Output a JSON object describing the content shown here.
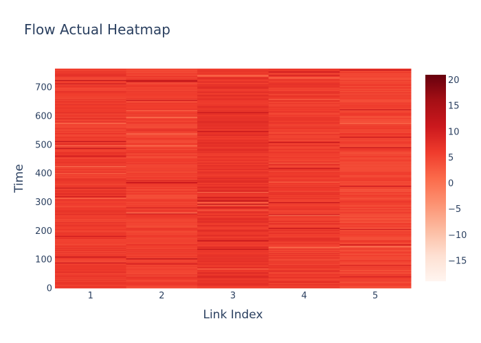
{
  "chart_data": {
    "type": "heatmap",
    "title": "Flow Actual Heatmap",
    "xlabel": "Link Index",
    "ylabel": "Time",
    "x_categories": [
      "1",
      "2",
      "3",
      "4",
      "5"
    ],
    "ylim": [
      0,
      765
    ],
    "y_ticks": [
      "0",
      "100",
      "200",
      "300",
      "400",
      "500",
      "600",
      "700"
    ],
    "color_range": [
      -19,
      21
    ],
    "colorbar_ticks": [
      "−15",
      "−10",
      "−5",
      "0",
      "5",
      "10",
      "15",
      "20"
    ],
    "colorscale": [
      "#fff5f0",
      "#fee0d2",
      "#fcbba1",
      "#fc9272",
      "#fb6a4a",
      "#ef3b2c",
      "#cb181d",
      "#a50f15",
      "#67000d"
    ],
    "time_steps": 765,
    "column_base_values": [
      6.0,
      5.5,
      7.0,
      6.0,
      5.0
    ],
    "note_values": "Each column is dominated by values around 3-9 (light-to-mid red), with isolated darker bands (about 10-12) and lighter bands (about 0-2)."
  }
}
